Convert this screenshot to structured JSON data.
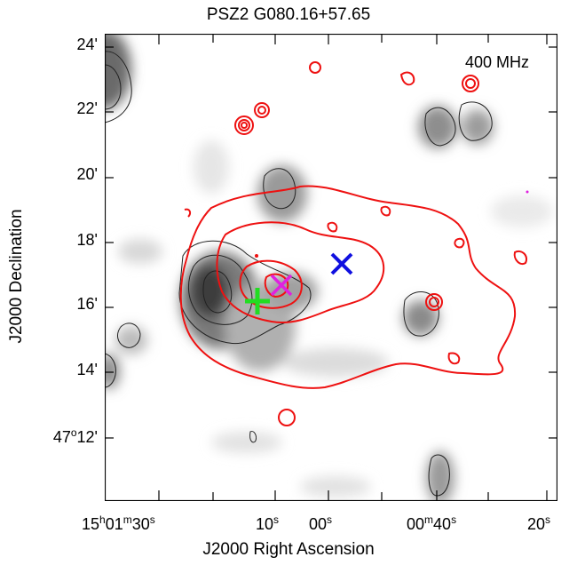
{
  "title": "PSZ2 G080.16+57.65",
  "xlabel": "J2000 Right Ascension",
  "ylabel": "J2000 Declination",
  "frequency_label": "400 MHz",
  "y_ticks": [
    {
      "label": "24'"
    },
    {
      "label": "22'"
    },
    {
      "label": "20'"
    },
    {
      "label": "18'"
    },
    {
      "label": "16'"
    },
    {
      "label": "14'"
    },
    {
      "label_deg": "47",
      "label_deg_sup": "o",
      "label_min": "12'"
    }
  ],
  "x_ticks": [
    {
      "h": "15",
      "h_sup": "h",
      "m": "01",
      "m_sup": "m",
      "s": "30",
      "s_sup": "s"
    },
    {
      "s": "10",
      "s_sup": "s"
    },
    {
      "s": "00",
      "s_sup": "s"
    },
    {
      "m": "00",
      "m_sup": "m",
      "s": "40",
      "s_sup": "s"
    },
    {
      "s": "20",
      "s_sup": "s"
    }
  ],
  "markers": [
    {
      "symbol": "x",
      "color": "#1010e0"
    },
    {
      "symbol": "x",
      "color": "#e020e0"
    },
    {
      "symbol": "+",
      "color": "#22dd22"
    }
  ],
  "colors": {
    "contour_radio": "#ee1111",
    "contour_optical": "#111111",
    "background": "#ffffff"
  }
}
